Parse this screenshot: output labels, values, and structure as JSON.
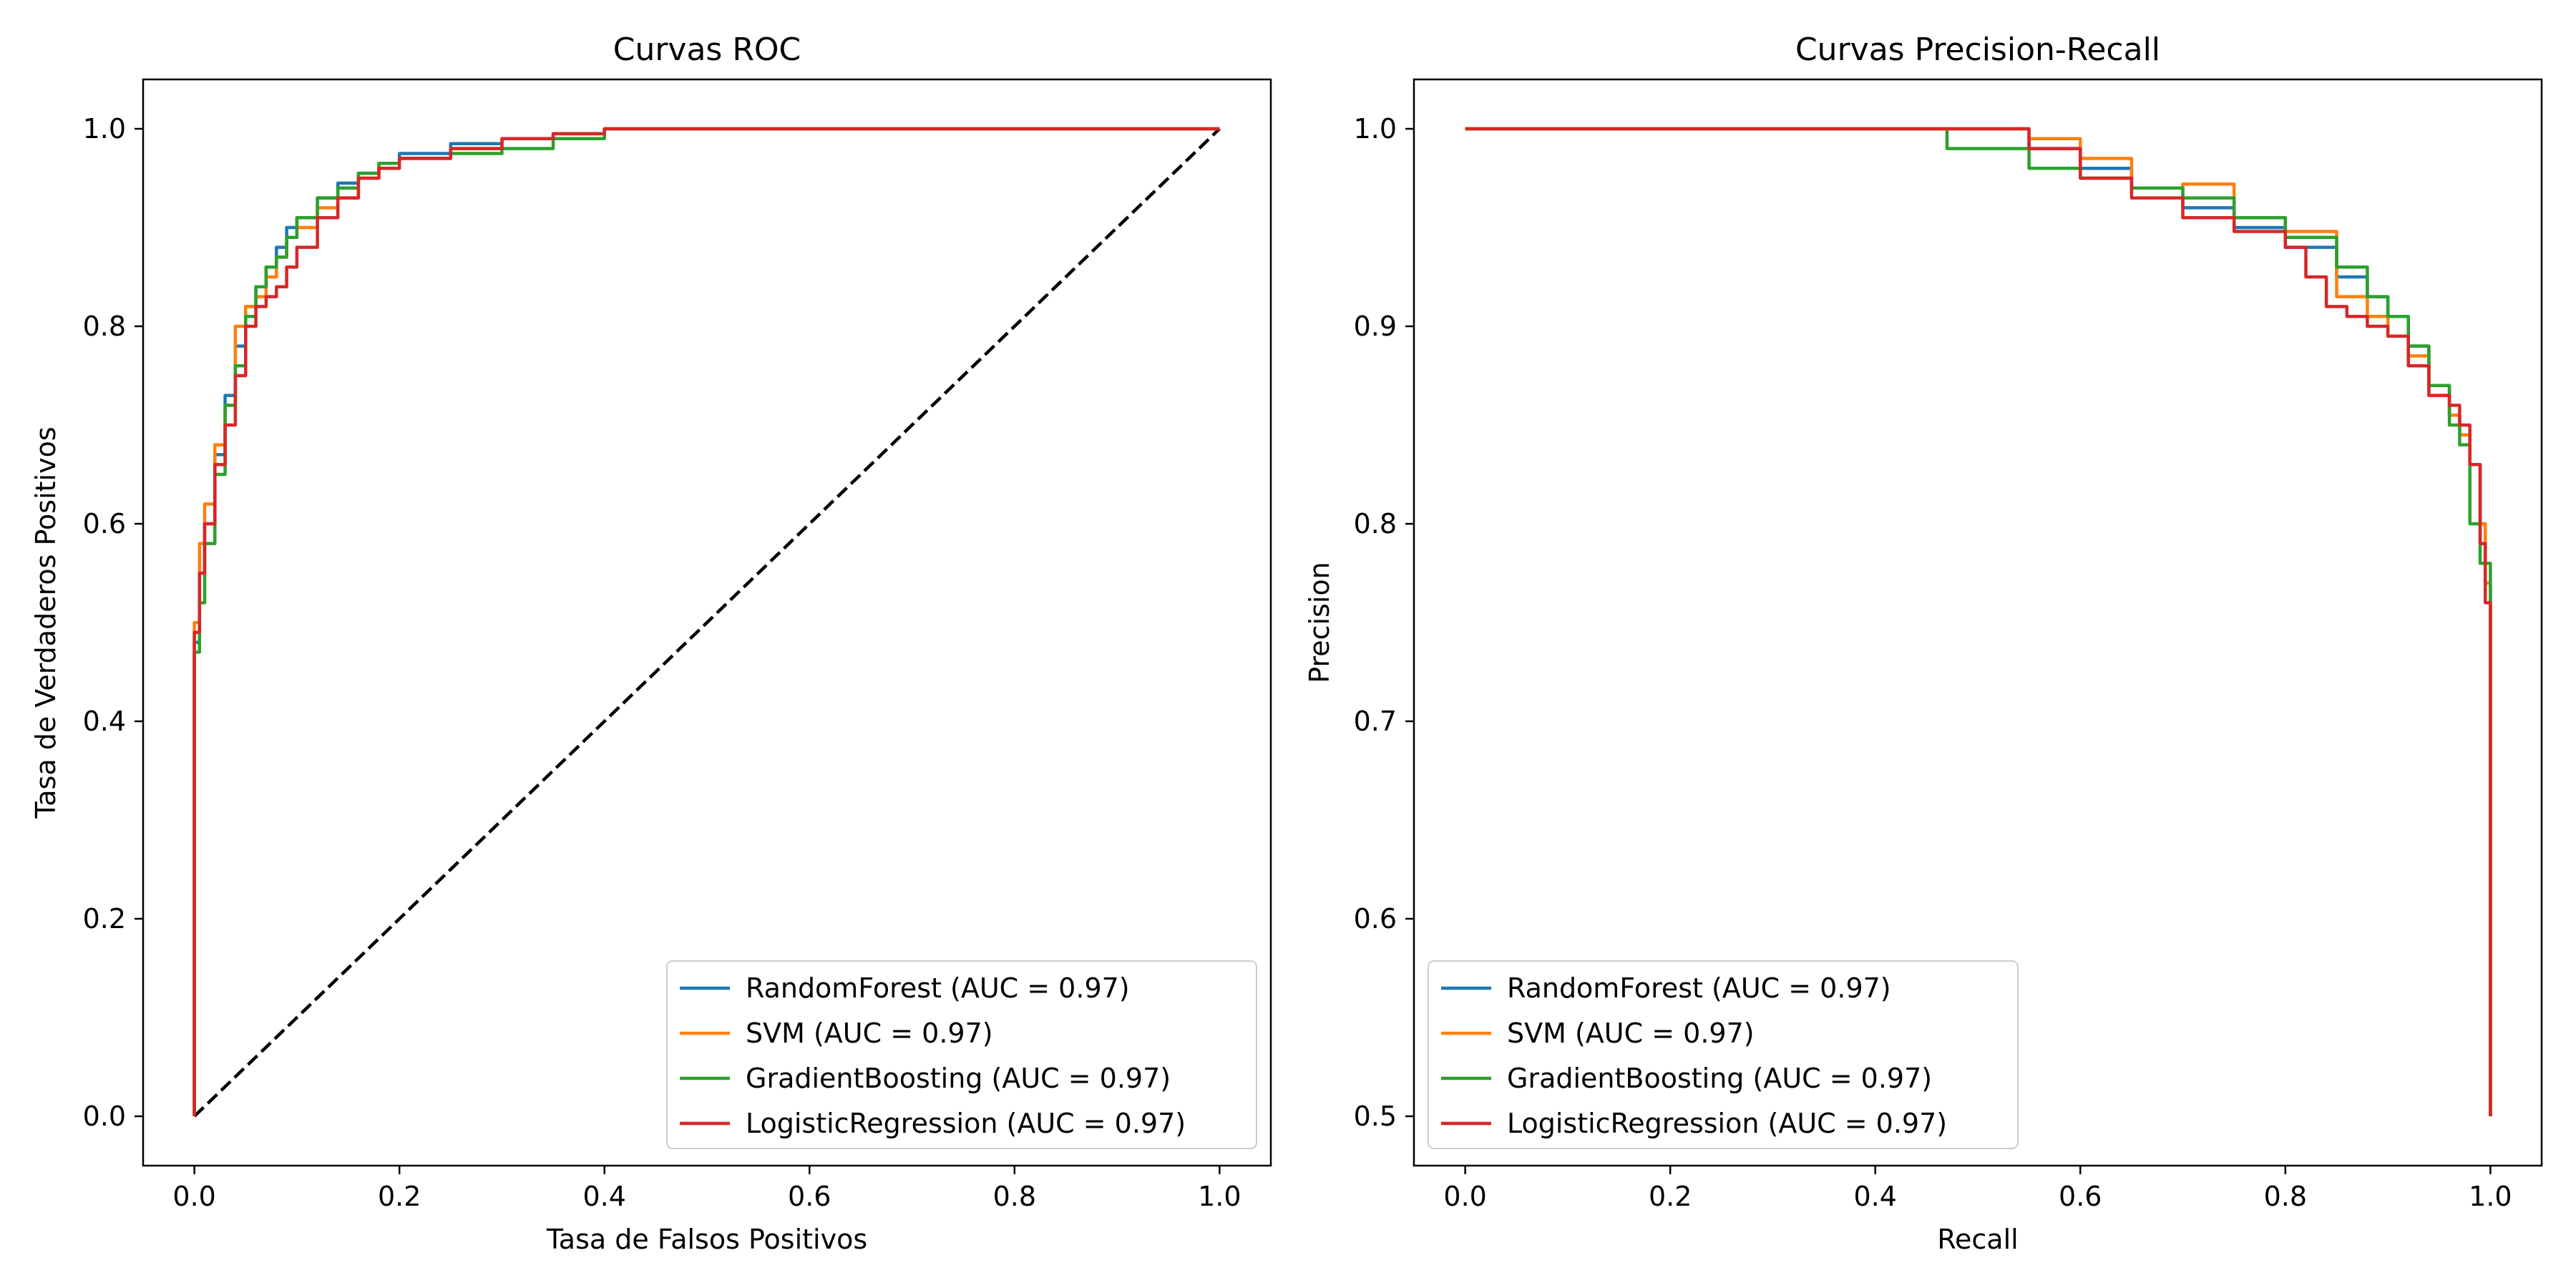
{
  "chart_data": [
    {
      "type": "line",
      "title": "Curvas ROC",
      "xlabel": "Tasa de Falsos Positivos",
      "ylabel": "Tasa de Verdaderos Positivos",
      "xlim": [
        -0.05,
        1.05
      ],
      "ylim": [
        -0.05,
        1.05
      ],
      "xticks": [
        "0.0",
        "0.2",
        "0.4",
        "0.6",
        "0.8",
        "1.0"
      ],
      "yticks": [
        "0.0",
        "0.2",
        "0.4",
        "0.6",
        "0.8",
        "1.0"
      ],
      "grid": false,
      "legend_position": "lower-right",
      "reference_line": {
        "x": [
          0,
          1
        ],
        "y": [
          0,
          1
        ],
        "style": "dashed",
        "color": "#000000"
      },
      "series": [
        {
          "name": "RandomForest (AUC = 0.97)",
          "color": "#1f77b4",
          "x": [
            0,
            0,
            0.005,
            0.01,
            0.02,
            0.03,
            0.04,
            0.05,
            0.06,
            0.07,
            0.08,
            0.09,
            0.1,
            0.12,
            0.14,
            0.16,
            0.18,
            0.2,
            0.25,
            0.3,
            0.35,
            0.4,
            0.5,
            0.7,
            1.0
          ],
          "y": [
            0,
            0.48,
            0.55,
            0.6,
            0.67,
            0.73,
            0.78,
            0.82,
            0.84,
            0.86,
            0.88,
            0.9,
            0.91,
            0.93,
            0.945,
            0.955,
            0.965,
            0.975,
            0.985,
            0.99,
            0.995,
            1.0,
            1.0,
            1.0,
            1.0
          ]
        },
        {
          "name": "SVM (AUC = 0.97)",
          "color": "#ff7f0e",
          "x": [
            0,
            0,
            0.005,
            0.01,
            0.02,
            0.03,
            0.04,
            0.05,
            0.06,
            0.07,
            0.08,
            0.09,
            0.1,
            0.12,
            0.14,
            0.16,
            0.18,
            0.2,
            0.25,
            0.3,
            0.35,
            0.4,
            0.5,
            0.7,
            1.0
          ],
          "y": [
            0,
            0.5,
            0.58,
            0.62,
            0.68,
            0.72,
            0.8,
            0.82,
            0.83,
            0.85,
            0.87,
            0.89,
            0.9,
            0.92,
            0.93,
            0.95,
            0.965,
            0.97,
            0.98,
            0.99,
            0.995,
            1.0,
            1.0,
            1.0,
            1.0
          ]
        },
        {
          "name": "GradientBoosting (AUC = 0.97)",
          "color": "#2ca02c",
          "x": [
            0,
            0,
            0.005,
            0.01,
            0.02,
            0.03,
            0.04,
            0.05,
            0.06,
            0.07,
            0.08,
            0.09,
            0.1,
            0.12,
            0.14,
            0.16,
            0.18,
            0.2,
            0.25,
            0.3,
            0.35,
            0.4,
            0.5,
            0.7,
            1.0
          ],
          "y": [
            0,
            0.47,
            0.52,
            0.58,
            0.65,
            0.72,
            0.76,
            0.81,
            0.84,
            0.86,
            0.87,
            0.89,
            0.91,
            0.93,
            0.94,
            0.955,
            0.965,
            0.97,
            0.975,
            0.98,
            0.99,
            1.0,
            1.0,
            1.0,
            1.0
          ]
        },
        {
          "name": "LogisticRegression (AUC = 0.97)",
          "color": "#d62728",
          "x": [
            0,
            0,
            0.005,
            0.01,
            0.02,
            0.03,
            0.04,
            0.05,
            0.06,
            0.07,
            0.08,
            0.09,
            0.1,
            0.12,
            0.14,
            0.16,
            0.18,
            0.2,
            0.25,
            0.3,
            0.35,
            0.4,
            0.5,
            0.7,
            1.0
          ],
          "y": [
            0,
            0.49,
            0.55,
            0.6,
            0.66,
            0.7,
            0.75,
            0.8,
            0.82,
            0.83,
            0.84,
            0.86,
            0.88,
            0.91,
            0.93,
            0.95,
            0.96,
            0.97,
            0.98,
            0.99,
            0.995,
            1.0,
            1.0,
            1.0,
            1.0
          ]
        }
      ]
    },
    {
      "type": "line",
      "title": "Curvas Precision-Recall",
      "xlabel": "Recall",
      "ylabel": "Precision",
      "xlim": [
        -0.05,
        1.05
      ],
      "ylim": [
        0.475,
        1.025
      ],
      "xticks": [
        "0.0",
        "0.2",
        "0.4",
        "0.6",
        "0.8",
        "1.0"
      ],
      "yticks": [
        "0.5",
        "0.6",
        "0.7",
        "0.8",
        "0.9",
        "1.0"
      ],
      "grid": false,
      "legend_position": "lower-left",
      "series": [
        {
          "name": "RandomForest (AUC = 0.97)",
          "color": "#1f77b4",
          "x": [
            0,
            0.5,
            0.55,
            0.6,
            0.65,
            0.7,
            0.75,
            0.8,
            0.85,
            0.88,
            0.9,
            0.92,
            0.94,
            0.96,
            0.97,
            0.98,
            0.99,
            0.995,
            1.0,
            1.0
          ],
          "y": [
            1.0,
            1.0,
            0.99,
            0.98,
            0.97,
            0.96,
            0.95,
            0.94,
            0.925,
            0.915,
            0.905,
            0.89,
            0.87,
            0.855,
            0.845,
            0.83,
            0.8,
            0.77,
            0.7,
            0.5
          ]
        },
        {
          "name": "SVM (AUC = 0.97)",
          "color": "#ff7f0e",
          "x": [
            0,
            0.5,
            0.55,
            0.6,
            0.65,
            0.7,
            0.75,
            0.8,
            0.85,
            0.88,
            0.9,
            0.92,
            0.94,
            0.96,
            0.97,
            0.98,
            0.99,
            0.995,
            1.0,
            1.0
          ],
          "y": [
            1.0,
            1.0,
            0.995,
            0.985,
            0.97,
            0.972,
            0.955,
            0.948,
            0.915,
            0.905,
            0.895,
            0.885,
            0.865,
            0.855,
            0.845,
            0.83,
            0.8,
            0.77,
            0.7,
            0.5
          ]
        },
        {
          "name": "GradientBoosting (AUC = 0.97)",
          "color": "#2ca02c",
          "x": [
            0,
            0.46,
            0.47,
            0.5,
            0.55,
            0.6,
            0.65,
            0.7,
            0.75,
            0.8,
            0.85,
            0.88,
            0.9,
            0.92,
            0.94,
            0.96,
            0.97,
            0.98,
            0.99,
            1.0,
            1.0
          ],
          "y": [
            1.0,
            1.0,
            0.99,
            0.99,
            0.98,
            0.975,
            0.97,
            0.965,
            0.955,
            0.945,
            0.93,
            0.915,
            0.905,
            0.89,
            0.87,
            0.85,
            0.84,
            0.8,
            0.78,
            0.7,
            0.5
          ]
        },
        {
          "name": "LogisticRegression (AUC = 0.97)",
          "color": "#d62728",
          "x": [
            0,
            0.52,
            0.55,
            0.6,
            0.65,
            0.7,
            0.75,
            0.8,
            0.82,
            0.84,
            0.86,
            0.88,
            0.9,
            0.92,
            0.94,
            0.96,
            0.97,
            0.98,
            0.99,
            0.995,
            1.0,
            1.0
          ],
          "y": [
            1.0,
            1.0,
            0.99,
            0.975,
            0.965,
            0.955,
            0.948,
            0.94,
            0.925,
            0.91,
            0.905,
            0.9,
            0.895,
            0.88,
            0.865,
            0.86,
            0.85,
            0.83,
            0.79,
            0.76,
            0.72,
            0.5
          ]
        }
      ]
    }
  ]
}
